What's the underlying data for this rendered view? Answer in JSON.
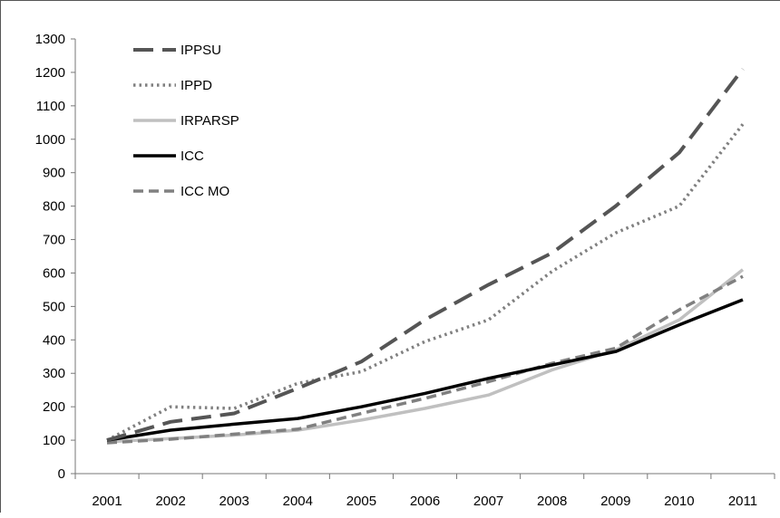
{
  "chart_data": {
    "type": "line",
    "title": "",
    "xlabel": "",
    "ylabel": "",
    "categories": [
      "2001",
      "2002",
      "2003",
      "2004",
      "2005",
      "2006",
      "2007",
      "2008",
      "2009",
      "2010",
      "2011"
    ],
    "ylim": [
      0,
      1300
    ],
    "yticks": [
      0,
      100,
      200,
      300,
      400,
      500,
      600,
      700,
      800,
      900,
      1000,
      1100,
      1200,
      1300
    ],
    "grid": false,
    "legend_position": "top-left",
    "series": [
      {
        "name": "IPPSU",
        "style": "long-dash",
        "color": "#555555",
        "values": [
          100,
          155,
          180,
          255,
          335,
          460,
          565,
          660,
          800,
          960,
          1210
        ]
      },
      {
        "name": "IPPD",
        "style": "dotted",
        "color": "#808080",
        "values": [
          100,
          200,
          195,
          270,
          305,
          395,
          460,
          605,
          720,
          800,
          1045
        ]
      },
      {
        "name": "IRPARSP",
        "style": "solid",
        "color": "#c0c0c0",
        "values": [
          95,
          105,
          115,
          130,
          160,
          195,
          235,
          310,
          370,
          460,
          610
        ]
      },
      {
        "name": "ICC",
        "style": "solid",
        "color": "#000000",
        "values": [
          100,
          130,
          148,
          165,
          200,
          240,
          285,
          325,
          365,
          445,
          520
        ]
      },
      {
        "name": "ICC MO",
        "style": "short-dash",
        "color": "#808080",
        "values": [
          92,
          103,
          118,
          133,
          180,
          225,
          275,
          330,
          375,
          490,
          590
        ]
      }
    ]
  }
}
